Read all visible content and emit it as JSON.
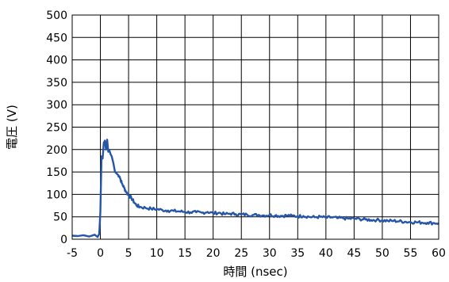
{
  "chart_data": {
    "type": "line",
    "xlabel": "時間 (nsec)",
    "ylabel": "電圧 (V)",
    "xlim": [
      -5,
      60
    ],
    "ylim": [
      0,
      500
    ],
    "x_ticks": [
      -5,
      0,
      5,
      10,
      15,
      20,
      25,
      30,
      35,
      40,
      45,
      50,
      55,
      60
    ],
    "y_ticks": [
      0,
      50,
      100,
      150,
      200,
      250,
      300,
      350,
      400,
      450,
      500
    ],
    "grid": true,
    "line_color": "#2756a8",
    "series": [
      {
        "x": [
          -5,
          -4,
          -3,
          -2,
          -1,
          -0.5,
          -0.2,
          0,
          0.2,
          0.4,
          0.6,
          0.8,
          1.0,
          1.2,
          1.4,
          1.6,
          1.8,
          2.0,
          2.3,
          2.6,
          3.0,
          3.4,
          3.8,
          4.2,
          4.6,
          5.0,
          5.5,
          6.0,
          6.5,
          7.0,
          8.0,
          9.0,
          10.0,
          11.0,
          12.0,
          13.0,
          14.0,
          15.0,
          16.0,
          17.0,
          18.0,
          19.0,
          20.0,
          21.0,
          22.0,
          23.0,
          24.0,
          25.0,
          26.0,
          27.0,
          28.0,
          29.0,
          30.0,
          31.0,
          32.0,
          33.0,
          34.0,
          35.0,
          36.0,
          37.0,
          38.0,
          39.0,
          40.0,
          41.0,
          42.0,
          43.0,
          44.0,
          45.0,
          46.0,
          47.0,
          48.0,
          49.0,
          50.0,
          51.0,
          52.0,
          53.0,
          54.0,
          55.0,
          56.0,
          57.0,
          58.0,
          59.0,
          60.0
        ],
        "y": [
          8,
          7,
          9,
          6,
          10,
          5,
          12,
          60,
          185,
          180,
          215,
          220,
          200,
          222,
          195,
          198,
          190,
          185,
          170,
          150,
          145,
          140,
          125,
          115,
          105,
          98,
          92,
          82,
          75,
          72,
          70,
          68,
          67,
          65,
          64,
          63,
          62,
          61,
          60,
          60,
          59,
          61,
          58,
          59,
          56,
          57,
          56,
          55,
          55,
          54,
          54,
          53,
          54,
          53,
          52,
          53,
          52,
          51,
          52,
          50,
          49,
          50,
          48,
          49,
          47,
          47,
          46,
          46,
          45,
          44,
          43,
          43,
          42,
          41,
          41,
          40,
          39,
          38,
          38,
          37,
          37,
          36,
          36
        ]
      }
    ]
  }
}
